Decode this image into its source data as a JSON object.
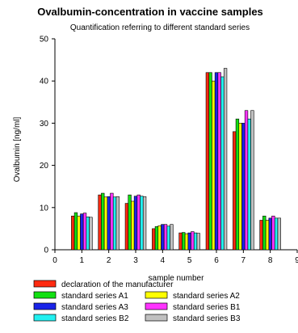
{
  "chart_data": {
    "type": "bar",
    "title": "Ovalbumin-concentration in vaccine samples",
    "subtitle": "Quantification referring to different standard series",
    "xlabel": "sample number",
    "ylabel": "Ovalbumin [ng/ml]",
    "xlim": [
      0,
      9
    ],
    "ylim": [
      0,
      50
    ],
    "x_ticks": [
      "0",
      "1",
      "2",
      "3",
      "4",
      "5",
      "6",
      "7",
      "8",
      "9"
    ],
    "y_ticks": [
      "0",
      "10",
      "20",
      "30",
      "40",
      "50"
    ],
    "categories": [
      1,
      2,
      3,
      4,
      5,
      6,
      7,
      8
    ],
    "grid": false,
    "legend_position": "bottom",
    "series": [
      {
        "name": "declaration of the manufacturer",
        "color": "#ff2a10",
        "values": [
          8,
          13,
          11,
          5,
          4,
          42,
          28,
          7
        ]
      },
      {
        "name": "standard series A1",
        "color": "#12e012",
        "values": [
          8.8,
          13.4,
          13,
          5.5,
          4.1,
          42,
          31,
          8
        ]
      },
      {
        "name": "standard series A2",
        "color": "#ffff00",
        "values": [
          8,
          12.5,
          11.5,
          5.7,
          3.8,
          40,
          30,
          7
        ]
      },
      {
        "name": "standard series A3",
        "color": "#1a24e8",
        "values": [
          8.5,
          12.6,
          12.7,
          6,
          4,
          42,
          30,
          7.5
        ]
      },
      {
        "name": "standard series B1",
        "color": "#ff33ff",
        "values": [
          8.7,
          13.4,
          13,
          6,
          4.3,
          42,
          33,
          8
        ]
      },
      {
        "name": "standard series B2",
        "color": "#22f0f0",
        "values": [
          7.8,
          12.5,
          12.7,
          5.6,
          4,
          41,
          31,
          7.5
        ]
      },
      {
        "name": "standard series B3",
        "color": "#c0c0c0",
        "values": [
          7.7,
          12.6,
          12.6,
          6,
          3.9,
          43,
          33,
          7.5
        ]
      }
    ]
  }
}
